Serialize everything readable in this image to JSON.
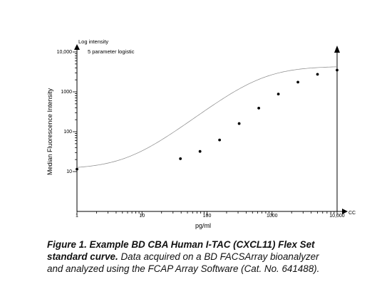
{
  "figure": {
    "caption_bold": "Figure 1. Example BD CBA Human I-TAC (CXCL11) Flex Set standard curve.",
    "caption_rest": "Data acquired on a BD FACSArray bioanalyzer and analyzed using the FCAP Array Software (Cat. No. 641488)."
  },
  "chart_data": {
    "type": "scatter",
    "title": "",
    "fit_label": "5 parameter logistic",
    "xlabel": "pg/ml",
    "ylabel": "Median Fluorescence Intensity",
    "y_axis_title": "Log intensity",
    "x_axis_end_label": "CC",
    "x_scale": "log",
    "y_scale": "log",
    "xlim": [
      1,
      10000
    ],
    "ylim": [
      10,
      10000
    ],
    "x_ticks": [
      {
        "value": 1,
        "label": "1"
      },
      {
        "value": 10,
        "label": "10"
      },
      {
        "value": 100,
        "label": "100"
      },
      {
        "value": 1000,
        "label": "1000"
      },
      {
        "value": 10000,
        "label": "10,000"
      }
    ],
    "y_ticks": [
      {
        "value": 10,
        "label": "10"
      },
      {
        "value": 100,
        "label": "100"
      },
      {
        "value": 1000,
        "label": "1000"
      },
      {
        "value": 10000,
        "label": "10,000"
      }
    ],
    "grid": false,
    "points": [
      {
        "x": 1,
        "y": 11.5
      },
      {
        "x": 39,
        "y": 21
      },
      {
        "x": 78,
        "y": 32
      },
      {
        "x": 156,
        "y": 62
      },
      {
        "x": 312,
        "y": 160
      },
      {
        "x": 625,
        "y": 390
      },
      {
        "x": 1250,
        "y": 880
      },
      {
        "x": 2500,
        "y": 1750
      },
      {
        "x": 5000,
        "y": 2750
      },
      {
        "x": 10000,
        "y": 3500
      }
    ],
    "fit_curve": {
      "bottom": 11.5,
      "top": 4400,
      "ec50": 700,
      "hill": 1.25,
      "asym": 1
    }
  }
}
